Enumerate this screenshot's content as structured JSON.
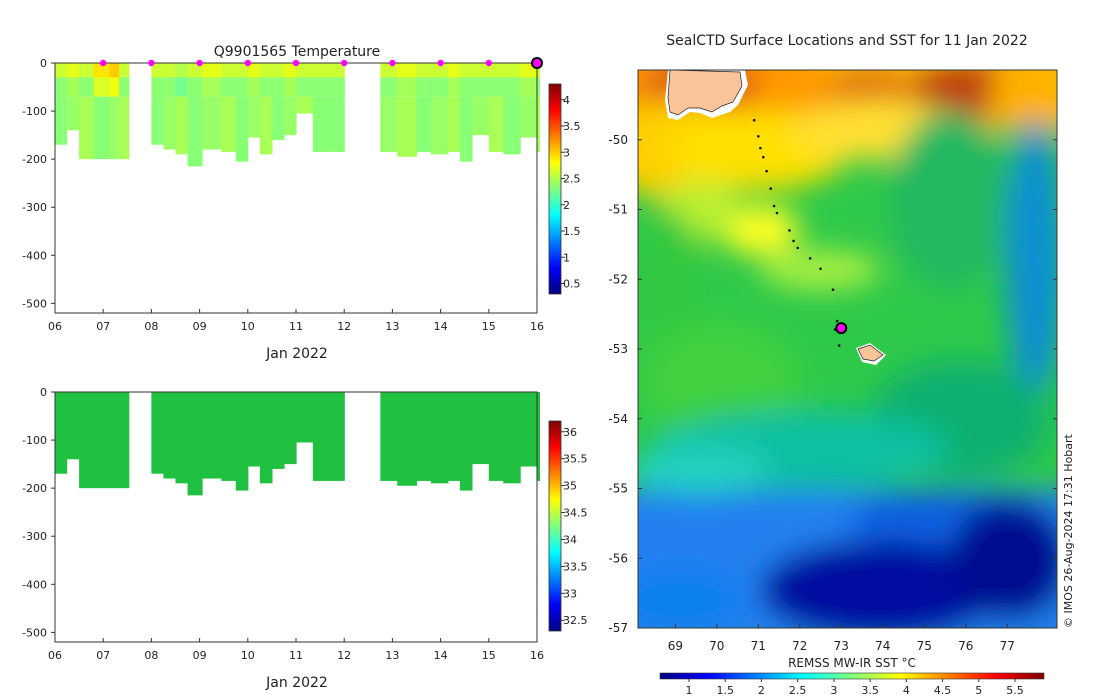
{
  "colors": {
    "jet": [
      "#00007f",
      "#0000ff",
      "#007fff",
      "#00ffff",
      "#7fff7f",
      "#ffff00",
      "#ff7f00",
      "#ff0000",
      "#7f0000"
    ],
    "marker": "#ff00ff",
    "land": "#ffc896",
    "profile_green": "#20c040"
  },
  "chart_data": [
    {
      "type": "heatmap",
      "id": "temperature",
      "title": "Q9901565  Temperature",
      "xlabel": "Jan 2022",
      "x_ticks": [
        "06",
        "07",
        "08",
        "09",
        "10",
        "11",
        "12",
        "13",
        "14",
        "15",
        "16"
      ],
      "xlim": [
        6,
        16
      ],
      "y_ticks": [
        "0",
        "-100",
        "-200",
        "-300",
        "-400",
        "-500"
      ],
      "ylim": [
        -520,
        0
      ],
      "colorbar": {
        "ticks": [
          "0.5",
          "1",
          "1.5",
          "2",
          "2.5",
          "3",
          "3.5",
          "4"
        ],
        "range": [
          0.3,
          4.3
        ]
      },
      "profiles": [
        {
          "t": 6.0,
          "w": 0.24,
          "bottom": -170,
          "surface": 2.6
        },
        {
          "t": 6.25,
          "w": 0.25,
          "bottom": -140,
          "surface": 2.7
        },
        {
          "t": 6.5,
          "w": 0.3,
          "bottom": -200,
          "surface": 2.6
        },
        {
          "t": 6.8,
          "w": 0.33,
          "bottom": -200,
          "surface": 2.9
        },
        {
          "t": 7.13,
          "w": 0.2,
          "bottom": -200,
          "surface": 3.0
        },
        {
          "t": 7.33,
          "w": 0.2,
          "bottom": -200,
          "surface": 2.6
        },
        {
          "t": 8.0,
          "w": 0.25,
          "bottom": -170,
          "surface": 2.6
        },
        {
          "t": 8.25,
          "w": 0.25,
          "bottom": -180,
          "surface": 2.6
        },
        {
          "t": 8.5,
          "w": 0.25,
          "bottom": -190,
          "surface": 2.5
        },
        {
          "t": 8.75,
          "w": 0.3,
          "bottom": -215,
          "surface": 2.6
        },
        {
          "t": 9.05,
          "w": 0.4,
          "bottom": -180,
          "surface": 2.7
        },
        {
          "t": 9.45,
          "w": 0.3,
          "bottom": -185,
          "surface": 2.6
        },
        {
          "t": 9.75,
          "w": 0.25,
          "bottom": -205,
          "surface": 2.6
        },
        {
          "t": 10.0,
          "w": 0.25,
          "bottom": -155,
          "surface": 2.7
        },
        {
          "t": 10.25,
          "w": 0.25,
          "bottom": -190,
          "surface": 2.6
        },
        {
          "t": 10.5,
          "w": 0.25,
          "bottom": -160,
          "surface": 2.6
        },
        {
          "t": 10.75,
          "w": 0.25,
          "bottom": -150,
          "surface": 2.7
        },
        {
          "t": 11.0,
          "w": 0.35,
          "bottom": -105,
          "surface": 2.6
        },
        {
          "t": 11.35,
          "w": 0.65,
          "bottom": -185,
          "surface": 2.6
        },
        {
          "t": 12.75,
          "w": 0.35,
          "bottom": -185,
          "surface": 2.6
        },
        {
          "t": 13.1,
          "w": 0.4,
          "bottom": -195,
          "surface": 2.7
        },
        {
          "t": 13.5,
          "w": 0.3,
          "bottom": -185,
          "surface": 2.6
        },
        {
          "t": 13.8,
          "w": 0.35,
          "bottom": -190,
          "surface": 2.6
        },
        {
          "t": 14.15,
          "w": 0.25,
          "bottom": -185,
          "surface": 2.7
        },
        {
          "t": 14.4,
          "w": 0.25,
          "bottom": -205,
          "surface": 2.6
        },
        {
          "t": 14.65,
          "w": 0.35,
          "bottom": -150,
          "surface": 2.6
        },
        {
          "t": 15.0,
          "w": 0.3,
          "bottom": -185,
          "surface": 2.6
        },
        {
          "t": 15.3,
          "w": 0.35,
          "bottom": -190,
          "surface": 2.6
        },
        {
          "t": 15.65,
          "w": 0.35,
          "bottom": -155,
          "surface": 2.7
        },
        {
          "t": 16.0,
          "w": 0.05,
          "bottom": -185,
          "surface": 2.6
        }
      ],
      "surface_markers": [
        7,
        8,
        9,
        10,
        11,
        12,
        13,
        14,
        15
      ],
      "current_marker": 16
    },
    {
      "type": "heatmap",
      "id": "salinity",
      "title": "",
      "xlabel": "Jan 2022",
      "x_ticks": [
        "06",
        "07",
        "08",
        "09",
        "10",
        "11",
        "12",
        "13",
        "14",
        "15",
        "16"
      ],
      "xlim": [
        6,
        16
      ],
      "y_ticks": [
        "0",
        "-100",
        "-200",
        "-300",
        "-400",
        "-500"
      ],
      "ylim": [
        -520,
        0
      ],
      "colorbar": {
        "ticks": [
          "32.5",
          "33",
          "33.5",
          "34",
          "34.5",
          "35",
          "35.5",
          "36"
        ],
        "range": [
          32.3,
          36.2
        ]
      },
      "profiles": [
        {
          "t": 6.0,
          "w": 0.24,
          "bottom": -170
        },
        {
          "t": 6.25,
          "w": 0.25,
          "bottom": -140
        },
        {
          "t": 6.5,
          "w": 0.3,
          "bottom": -200
        },
        {
          "t": 6.8,
          "w": 0.33,
          "bottom": -200
        },
        {
          "t": 7.13,
          "w": 0.2,
          "bottom": -200
        },
        {
          "t": 7.33,
          "w": 0.2,
          "bottom": -200
        },
        {
          "t": 8.0,
          "w": 0.25,
          "bottom": -170
        },
        {
          "t": 8.25,
          "w": 0.25,
          "bottom": -180
        },
        {
          "t": 8.5,
          "w": 0.25,
          "bottom": -190
        },
        {
          "t": 8.75,
          "w": 0.3,
          "bottom": -215
        },
        {
          "t": 9.05,
          "w": 0.4,
          "bottom": -180
        },
        {
          "t": 9.45,
          "w": 0.3,
          "bottom": -185
        },
        {
          "t": 9.75,
          "w": 0.25,
          "bottom": -205
        },
        {
          "t": 10.0,
          "w": 0.25,
          "bottom": -155
        },
        {
          "t": 10.25,
          "w": 0.25,
          "bottom": -190
        },
        {
          "t": 10.5,
          "w": 0.25,
          "bottom": -160
        },
        {
          "t": 10.75,
          "w": 0.25,
          "bottom": -150
        },
        {
          "t": 11.0,
          "w": 0.35,
          "bottom": -105
        },
        {
          "t": 11.35,
          "w": 0.65,
          "bottom": -185
        },
        {
          "t": 12.75,
          "w": 0.35,
          "bottom": -185
        },
        {
          "t": 13.1,
          "w": 0.4,
          "bottom": -195
        },
        {
          "t": 13.5,
          "w": 0.3,
          "bottom": -185
        },
        {
          "t": 13.8,
          "w": 0.35,
          "bottom": -190
        },
        {
          "t": 14.15,
          "w": 0.25,
          "bottom": -185
        },
        {
          "t": 14.4,
          "w": 0.25,
          "bottom": -205
        },
        {
          "t": 14.65,
          "w": 0.35,
          "bottom": -150
        },
        {
          "t": 15.0,
          "w": 0.3,
          "bottom": -185
        },
        {
          "t": 15.3,
          "w": 0.35,
          "bottom": -190
        },
        {
          "t": 15.65,
          "w": 0.35,
          "bottom": -155
        },
        {
          "t": 16.0,
          "w": 0.05,
          "bottom": -185
        }
      ]
    },
    {
      "type": "heatmap",
      "id": "sst_map",
      "title": "SealCTD Surface Locations and SST for 11 Jan 2022",
      "xlim": [
        68.1,
        78.2
      ],
      "ylim": [
        -57.0,
        -49.0
      ],
      "x_ticks": [
        "69",
        "70",
        "71",
        "72",
        "73",
        "74",
        "75",
        "76",
        "77"
      ],
      "y_ticks": [
        "-50",
        "-51",
        "-52",
        "-53",
        "-54",
        "-55",
        "-56",
        "-57"
      ],
      "colorbar": {
        "label": "REMSS MW-IR SST °C",
        "ticks": [
          "1",
          "1.5",
          "2",
          "2.5",
          "3",
          "3.5",
          "4",
          "4.5",
          "5",
          "5.5"
        ],
        "range": [
          0.6,
          5.9
        ]
      },
      "track": [
        {
          "lon": 70.9,
          "lat": -49.72
        },
        {
          "lon": 71.0,
          "lat": -49.95
        },
        {
          "lon": 71.05,
          "lat": -50.12
        },
        {
          "lon": 71.12,
          "lat": -50.25
        },
        {
          "lon": 71.2,
          "lat": -50.45
        },
        {
          "lon": 71.3,
          "lat": -50.7
        },
        {
          "lon": 71.38,
          "lat": -50.95
        },
        {
          "lon": 71.45,
          "lat": -51.05
        },
        {
          "lon": 71.75,
          "lat": -51.3
        },
        {
          "lon": 71.85,
          "lat": -51.45
        },
        {
          "lon": 71.95,
          "lat": -51.55
        },
        {
          "lon": 72.25,
          "lat": -51.7
        },
        {
          "lon": 72.5,
          "lat": -51.85
        },
        {
          "lon": 72.8,
          "lat": -52.15
        },
        {
          "lon": 72.9,
          "lat": -52.6
        },
        {
          "lon": 72.85,
          "lat": -52.72
        },
        {
          "lon": 72.95,
          "lat": -52.95
        }
      ],
      "current_position": {
        "lon": 73.0,
        "lat": -52.7
      },
      "credit": "© IMOS 26-Aug-2024 17:31 Hobart"
    }
  ]
}
